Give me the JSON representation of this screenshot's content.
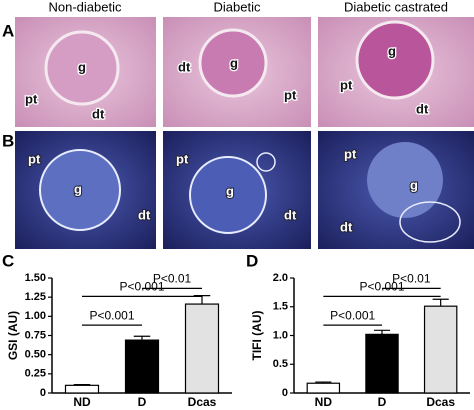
{
  "figure": {
    "panel_labels": [
      "A",
      "B",
      "C",
      "D"
    ],
    "columns": [
      "Non-diabetic",
      "Diabetic",
      "Diabetic castrated"
    ],
    "micrograph_labels": [
      [
        [
          "pt",
          "g",
          "dt"
        ],
        [
          "dt",
          "g",
          "pt"
        ],
        [
          "g",
          "pt",
          "dt"
        ]
      ],
      [
        [
          "pt",
          "g",
          "dt"
        ],
        [
          "pt",
          "g",
          "dt"
        ],
        [
          "pt",
          "g",
          "dt"
        ]
      ]
    ]
  },
  "chart_data": [
    {
      "type": "bar",
      "ylabel": "GSI (AU)",
      "categories": [
        "ND",
        "D",
        "Dcas"
      ],
      "values": [
        0.1,
        0.69,
        1.16
      ],
      "errors": [
        0.01,
        0.05,
        0.11
      ],
      "colors": [
        "#ffffff",
        "#000000",
        "#e2e2e2"
      ],
      "ylim": [
        0,
        1.5
      ],
      "yticks": [
        0,
        0.25,
        {
          "value": 0.5,
          "label": "0.50"
        },
        0.75,
        {
          "value": 1.0,
          "label": "1.00"
        },
        1.25,
        {
          "value": 1.5,
          "label": "1.50"
        }
      ],
      "annotations": [
        "P<0.001",
        "P<0.001",
        "P<0.01"
      ]
    },
    {
      "type": "bar",
      "ylabel": "TIFI (AU)",
      "categories": [
        "ND",
        "D",
        "Dcas"
      ],
      "values": [
        0.17,
        1.02,
        1.51
      ],
      "errors": [
        0.02,
        0.07,
        0.12
      ],
      "colors": [
        "#ffffff",
        "#000000",
        "#e2e2e2"
      ],
      "ylim": [
        0,
        2.0
      ],
      "yticks": [
        0,
        0.5,
        {
          "value": 1.0,
          "label": "1.0"
        },
        {
          "value": 1.5,
          "label": "1.5"
        },
        {
          "value": 2.0,
          "label": "2.0"
        }
      ],
      "annotations": [
        "P<0.001",
        "P<0.001",
        "P<0.01"
      ]
    }
  ]
}
